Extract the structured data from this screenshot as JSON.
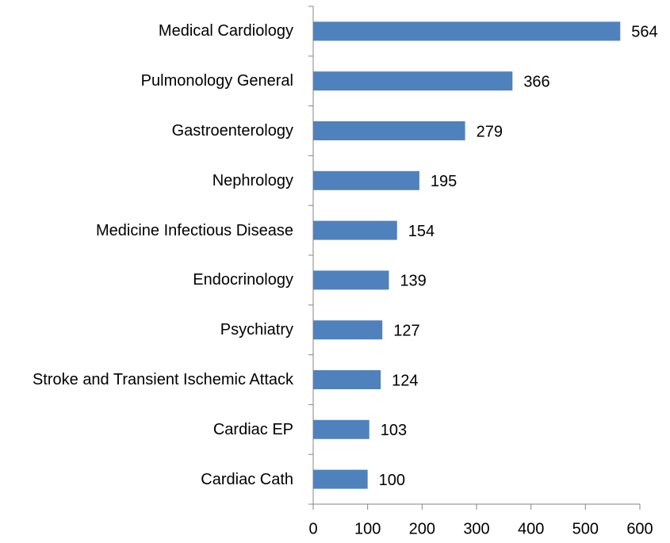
{
  "chart_data": {
    "type": "bar",
    "orientation": "horizontal",
    "categories": [
      "Medical Cardiology",
      "Pulmonology General",
      "Gastroenterology",
      "Nephrology",
      "Medicine Infectious Disease",
      "Endocrinology",
      "Psychiatry",
      "Stroke and Transient Ischemic Attack",
      "Cardiac EP",
      "Cardiac Cath"
    ],
    "values": [
      564,
      366,
      279,
      195,
      154,
      139,
      127,
      124,
      103,
      100
    ],
    "color": "#4f81bd",
    "xlim": [
      0,
      600
    ],
    "xticks": [
      0,
      100,
      200,
      300,
      400,
      500,
      600
    ],
    "grid": false
  }
}
